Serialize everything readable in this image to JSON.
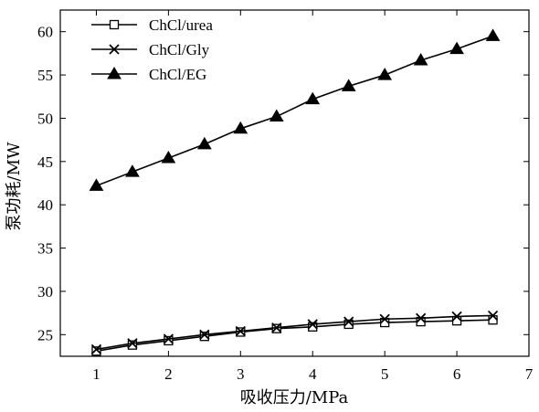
{
  "chart_data": {
    "type": "line",
    "title": "",
    "xlabel": "吸收压力/MPa",
    "ylabel": "泵功耗/MW",
    "xlim": [
      0.5,
      7
    ],
    "ylim": [
      22.5,
      62.5
    ],
    "xticks": [
      1,
      2,
      3,
      4,
      5,
      6,
      7
    ],
    "yticks": [
      25,
      30,
      35,
      40,
      45,
      50,
      55,
      60
    ],
    "grid": false,
    "legend_position": "top-left",
    "x": [
      1,
      1.5,
      2,
      2.5,
      3,
      3.5,
      4,
      4.5,
      5,
      5.5,
      6,
      6.5
    ],
    "series": [
      {
        "name": "ChCl/urea",
        "marker": "open-square",
        "color": "#000000",
        "values": [
          23.1,
          23.8,
          24.3,
          24.8,
          25.3,
          25.7,
          25.9,
          26.2,
          26.4,
          26.5,
          26.6,
          26.7
        ]
      },
      {
        "name": "ChCl/Gly",
        "marker": "x",
        "color": "#000000",
        "values": [
          23.3,
          24.0,
          24.5,
          25.0,
          25.4,
          25.8,
          26.2,
          26.5,
          26.8,
          26.9,
          27.1,
          27.2
        ]
      },
      {
        "name": "ChCl/EG",
        "marker": "filled-triangle",
        "color": "#000000",
        "values": [
          42.2,
          43.8,
          45.4,
          47.0,
          48.8,
          50.2,
          52.2,
          53.7,
          55.0,
          56.7,
          58.0,
          59.5
        ]
      }
    ]
  }
}
